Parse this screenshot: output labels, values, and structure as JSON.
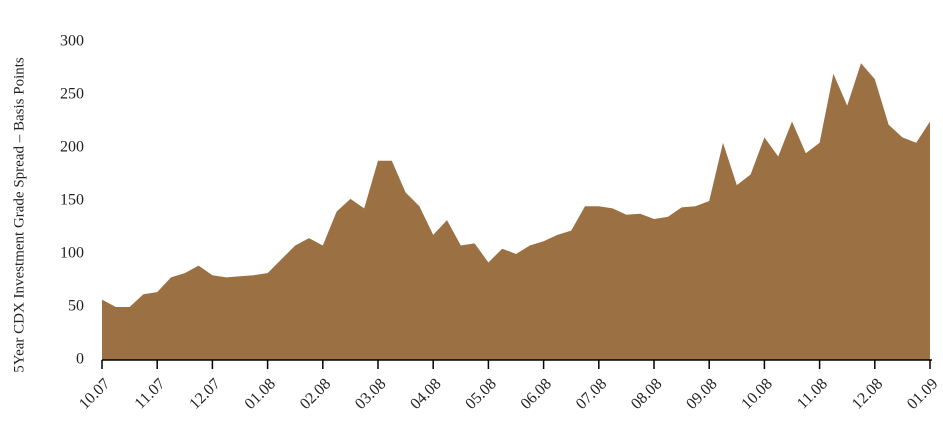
{
  "chart_data": {
    "type": "area",
    "y_label": "5Year CDX Investment Grade Spread – Basis Points",
    "categories": [
      "10.07",
      null,
      null,
      null,
      "11.07",
      null,
      null,
      null,
      "12.07",
      null,
      null,
      null,
      "01.08",
      null,
      null,
      null,
      "02.08",
      null,
      null,
      null,
      "03.08",
      null,
      null,
      null,
      "04.08",
      null,
      null,
      null,
      "05.08",
      null,
      null,
      null,
      "06.08",
      null,
      null,
      null,
      "07.08",
      null,
      null,
      null,
      "08.08",
      null,
      null,
      null,
      "09.08",
      null,
      null,
      null,
      "10.08",
      null,
      null,
      null,
      "11.08",
      null,
      null,
      null,
      "12.08",
      null,
      null,
      null,
      "01.09"
    ],
    "values": [
      57,
      50,
      50,
      62,
      64,
      78,
      82,
      89,
      80,
      78,
      79,
      80,
      82,
      95,
      108,
      115,
      108,
      140,
      152,
      143,
      188,
      188,
      158,
      145,
      118,
      132,
      108,
      110,
      92,
      105,
      100,
      108,
      112,
      118,
      122,
      145,
      145,
      143,
      137,
      138,
      133,
      135,
      144,
      145,
      150,
      205,
      165,
      175,
      210,
      192,
      225,
      195,
      205,
      270,
      240,
      280,
      265,
      222,
      210,
      205,
      225
    ],
    "color": "#9b7043",
    "ylim": [
      0,
      300
    ],
    "yticks": [
      0,
      50,
      100,
      150,
      200,
      250,
      300
    ],
    "grid": false
  }
}
